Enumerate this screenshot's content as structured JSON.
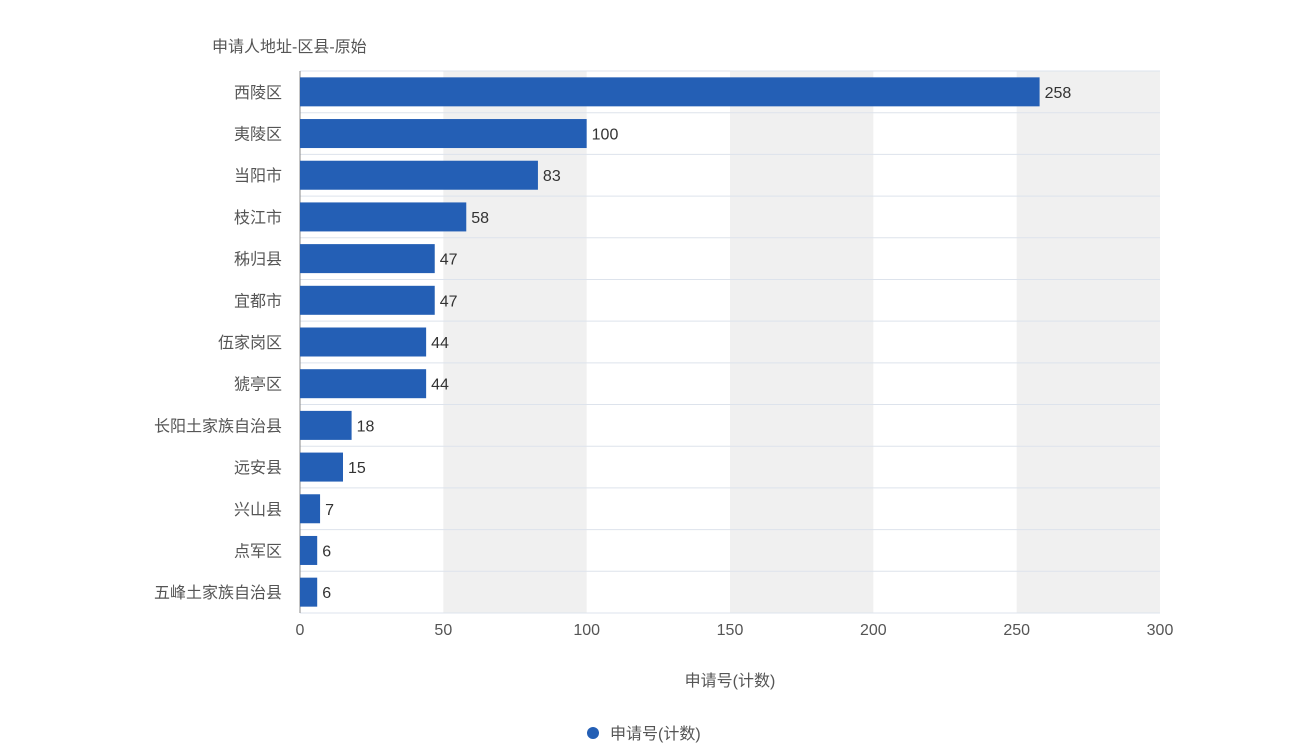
{
  "chart_data": {
    "type": "bar",
    "orientation": "horizontal",
    "title": "",
    "ylabel": "申请人地址-区县-原始",
    "xlabel": "申请号(计数)",
    "categories": [
      "西陵区",
      "夷陵区",
      "当阳市",
      "枝江市",
      "秭归县",
      "宜都市",
      "伍家岗区",
      "猇亭区",
      "长阳土家族自治县",
      "远安县",
      "兴山县",
      "点军区",
      "五峰土家族自治县"
    ],
    "series": [
      {
        "name": "申请号(计数)",
        "values": [
          258,
          100,
          83,
          58,
          47,
          47,
          44,
          44,
          18,
          15,
          7,
          6,
          6
        ],
        "color": "#245fb5"
      }
    ],
    "xlim": [
      0,
      300
    ],
    "xticks": [
      0,
      50,
      100,
      150,
      200,
      250,
      300
    ],
    "grid": true,
    "legend": {
      "position": "bottom-center",
      "label": "申请号(计数)"
    }
  }
}
